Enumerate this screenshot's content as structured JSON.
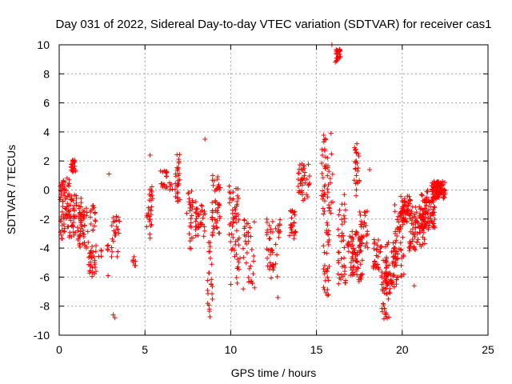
{
  "chart_data": {
    "type": "scatter",
    "title": "Day 031 of 2022, Sidereal Day-to-day VTEC variation (SDTVAR) for receiver cas1",
    "xlabel": "GPS time / hours",
    "ylabel": "SDTVAR / TECUs",
    "xlim": [
      0,
      25
    ],
    "ylim": [
      -10,
      10
    ],
    "x_ticks": [
      0,
      5,
      10,
      15,
      20,
      25
    ],
    "y_ticks": [
      -10,
      -8,
      -6,
      -4,
      -2,
      0,
      2,
      4,
      6,
      8,
      10
    ],
    "grid": true,
    "marker": "plus",
    "series_color": "#ff0000",
    "series": [
      {
        "name": "SDTVAR",
        "clusters": [
          {
            "x0": 0.05,
            "x1": 0.35,
            "y0": -3.5,
            "y1": 0.7,
            "n": 40
          },
          {
            "x0": 0.35,
            "x1": 0.6,
            "y0": -2.8,
            "y1": 1.0,
            "n": 25
          },
          {
            "x0": 0.6,
            "x1": 0.95,
            "y0": 1.2,
            "y1": 2.1,
            "n": 20
          },
          {
            "x0": 0.6,
            "x1": 1.3,
            "y0": -3.3,
            "y1": -0.2,
            "n": 55
          },
          {
            "x0": 1.1,
            "x1": 1.7,
            "y0": -4.0,
            "y1": -1.2,
            "n": 40
          },
          {
            "x0": 1.7,
            "x1": 2.15,
            "y0": -6.0,
            "y1": -3.7,
            "n": 30
          },
          {
            "x0": 1.8,
            "x1": 2.15,
            "y0": -2.8,
            "y1": -1.0,
            "n": 15
          },
          {
            "x0": 2.3,
            "x1": 2.5,
            "y0": -4.6,
            "y1": -4.1,
            "n": 5
          },
          {
            "x0": 2.8,
            "x1": 3.0,
            "y0": -4.3,
            "y1": -3.7,
            "n": 4
          },
          {
            "x0": 3.05,
            "x1": 3.6,
            "y0": -4.8,
            "y1": -1.8,
            "n": 25
          },
          {
            "x0": 4.3,
            "x1": 4.5,
            "y0": -5.2,
            "y1": -4.0,
            "n": 6
          },
          {
            "x0": 5.1,
            "x1": 5.4,
            "y0": -3.5,
            "y1": -1.0,
            "n": 18
          },
          {
            "x0": 5.25,
            "x1": 5.5,
            "y0": -0.8,
            "y1": 0.4,
            "n": 10
          },
          {
            "x0": 5.9,
            "x1": 6.3,
            "y0": 0.0,
            "y1": 1.5,
            "n": 18
          },
          {
            "x0": 6.4,
            "x1": 6.6,
            "y0": 0.0,
            "y1": 0.5,
            "n": 5
          },
          {
            "x0": 6.75,
            "x1": 7.05,
            "y0": -0.8,
            "y1": 2.6,
            "n": 30
          },
          {
            "x0": 7.4,
            "x1": 7.8,
            "y0": -4.2,
            "y1": 0.0,
            "n": 25
          },
          {
            "x0": 7.9,
            "x1": 8.5,
            "y0": -3.2,
            "y1": -0.8,
            "n": 35
          },
          {
            "x0": 8.65,
            "x1": 8.95,
            "y0": -9.3,
            "y1": -3.0,
            "n": 25
          },
          {
            "x0": 8.9,
            "x1": 9.4,
            "y0": -3.0,
            "y1": 1.0,
            "n": 45
          },
          {
            "x0": 9.9,
            "x1": 10.5,
            "y0": -4.6,
            "y1": 0.5,
            "n": 50
          },
          {
            "x0": 10.3,
            "x1": 10.6,
            "y0": -6.5,
            "y1": -4.5,
            "n": 8
          },
          {
            "x0": 10.7,
            "x1": 11.4,
            "y0": -6.9,
            "y1": -2.0,
            "n": 35
          },
          {
            "x0": 12.1,
            "x1": 12.5,
            "y0": -6.2,
            "y1": -1.8,
            "n": 30
          },
          {
            "x0": 12.5,
            "x1": 12.9,
            "y0": -6.0,
            "y1": -2.0,
            "n": 15
          },
          {
            "x0": 13.4,
            "x1": 13.8,
            "y0": -3.6,
            "y1": -1.2,
            "n": 25
          },
          {
            "x0": 13.9,
            "x1": 14.6,
            "y0": -0.8,
            "y1": 1.9,
            "n": 40
          },
          {
            "x0": 15.3,
            "x1": 15.6,
            "y0": -2.0,
            "y1": 4.0,
            "n": 30
          },
          {
            "x0": 15.4,
            "x1": 15.75,
            "y0": -7.3,
            "y1": -2.0,
            "n": 30
          },
          {
            "x0": 15.6,
            "x1": 15.95,
            "y0": -2.0,
            "y1": 2.5,
            "n": 20
          },
          {
            "x0": 16.1,
            "x1": 16.4,
            "y0": 8.8,
            "y1": 9.7,
            "n": 25
          },
          {
            "x0": 16.25,
            "x1": 16.7,
            "y0": -6.5,
            "y1": -0.2,
            "n": 40
          },
          {
            "x0": 16.8,
            "x1": 17.7,
            "y0": -6.3,
            "y1": -2.8,
            "n": 80
          },
          {
            "x0": 17.2,
            "x1": 17.5,
            "y0": -0.4,
            "y1": 3.4,
            "n": 25
          },
          {
            "x0": 17.5,
            "x1": 18.0,
            "y0": -4.2,
            "y1": -1.2,
            "n": 25
          },
          {
            "x0": 18.3,
            "x1": 18.9,
            "y0": -5.5,
            "y1": -3.4,
            "n": 30
          },
          {
            "x0": 18.8,
            "x1": 19.3,
            "y0": -8.9,
            "y1": -5.5,
            "n": 45
          },
          {
            "x0": 19.0,
            "x1": 19.7,
            "y0": -6.8,
            "y1": -3.6,
            "n": 50
          },
          {
            "x0": 19.5,
            "x1": 20.1,
            "y0": -6.0,
            "y1": -1.0,
            "n": 50
          },
          {
            "x0": 19.9,
            "x1": 20.5,
            "y0": -2.2,
            "y1": -0.3,
            "n": 55
          },
          {
            "x0": 20.4,
            "x1": 21.4,
            "y0": -4.2,
            "y1": -1.0,
            "n": 80
          },
          {
            "x0": 21.0,
            "x1": 21.9,
            "y0": -2.8,
            "y1": 0.0,
            "n": 80
          },
          {
            "x0": 21.7,
            "x1": 22.5,
            "y0": -0.6,
            "y1": 0.6,
            "n": 90
          }
        ],
        "points": [
          {
            "x": 2.9,
            "y": 1.1
          },
          {
            "x": 3.15,
            "y": -8.6
          },
          {
            "x": 3.25,
            "y": -8.8
          },
          {
            "x": 2.85,
            "y": -5.9
          },
          {
            "x": 5.3,
            "y": 2.4
          },
          {
            "x": 8.5,
            "y": 3.5
          },
          {
            "x": 10.0,
            "y": -6.5
          },
          {
            "x": 12.75,
            "y": -7.4
          },
          {
            "x": 15.9,
            "y": 10.0
          },
          {
            "x": 15.85,
            "y": 3.9
          },
          {
            "x": 18.1,
            "y": 1.4
          },
          {
            "x": 20.7,
            "y": -6.6
          },
          {
            "x": 4.4,
            "y": -5.2
          },
          {
            "x": 8.95,
            "y": 1.0
          }
        ]
      }
    ]
  }
}
